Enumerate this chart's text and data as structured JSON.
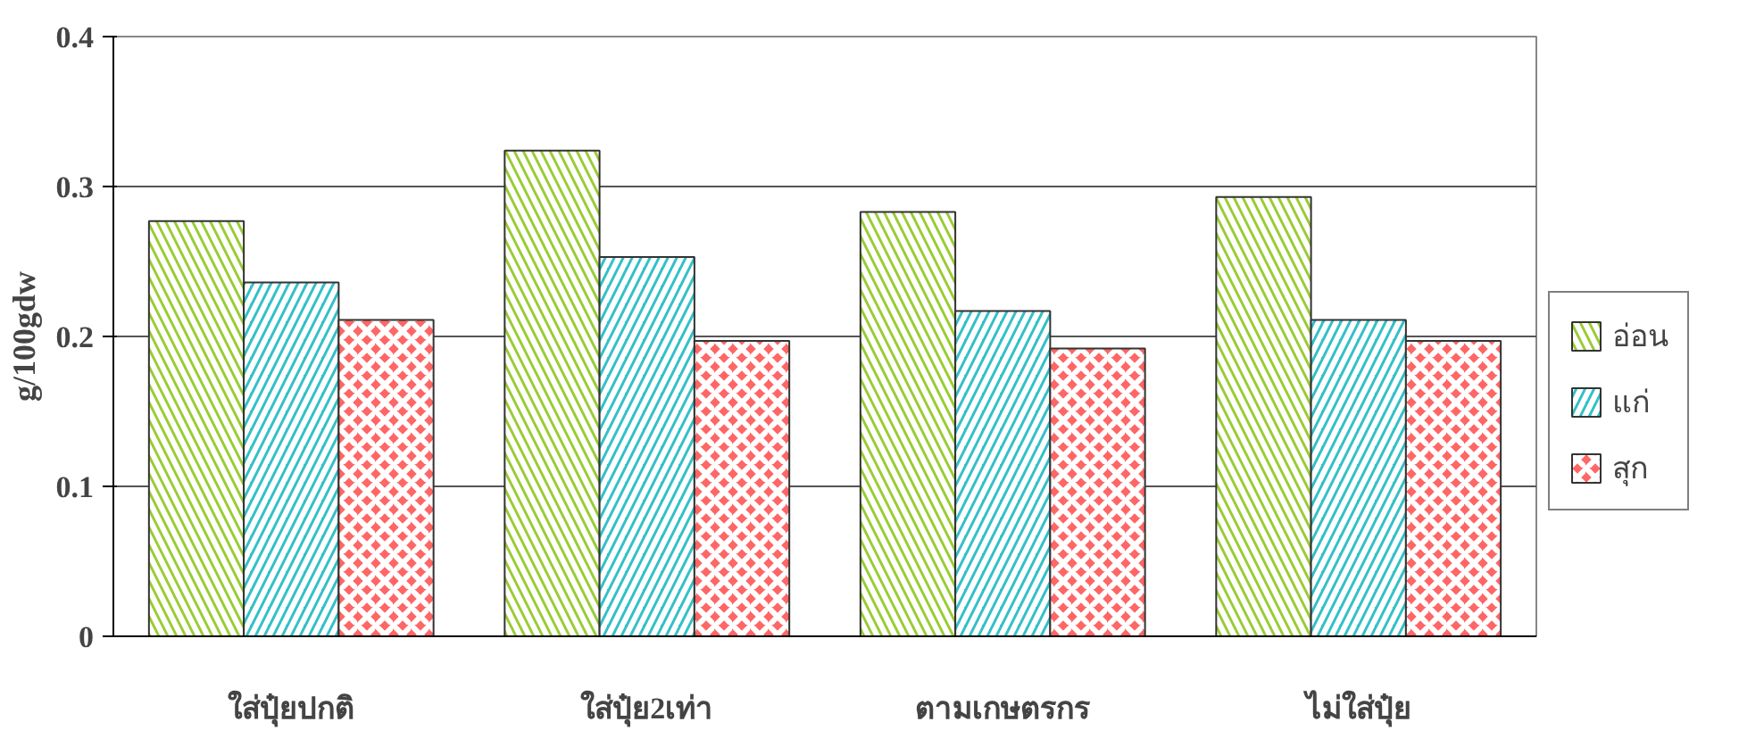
{
  "chart_data": {
    "type": "bar",
    "ylabel": "g/100gdw",
    "categories": [
      "ใส่ปุ๋ยปกติ",
      "ใส่ปุ๋ย2เท่า",
      "ตามเกษตรกร",
      "ไม่ใส่ปุ๋ย"
    ],
    "series": [
      {
        "name": "อ่อน",
        "color": "#99cc33",
        "values": [
          0.277,
          0.324,
          0.283,
          0.293
        ]
      },
      {
        "name": "แก่",
        "color": "#33c0c8",
        "values": [
          0.236,
          0.253,
          0.217,
          0.211
        ]
      },
      {
        "name": "สุก",
        "color": "#ff6666",
        "values": [
          0.211,
          0.197,
          0.192,
          0.197
        ]
      }
    ],
    "ylim": [
      0,
      0.4
    ],
    "yticks": [
      0,
      0.1,
      0.2,
      0.3,
      0.4
    ],
    "grid": "y",
    "legend": "right"
  }
}
